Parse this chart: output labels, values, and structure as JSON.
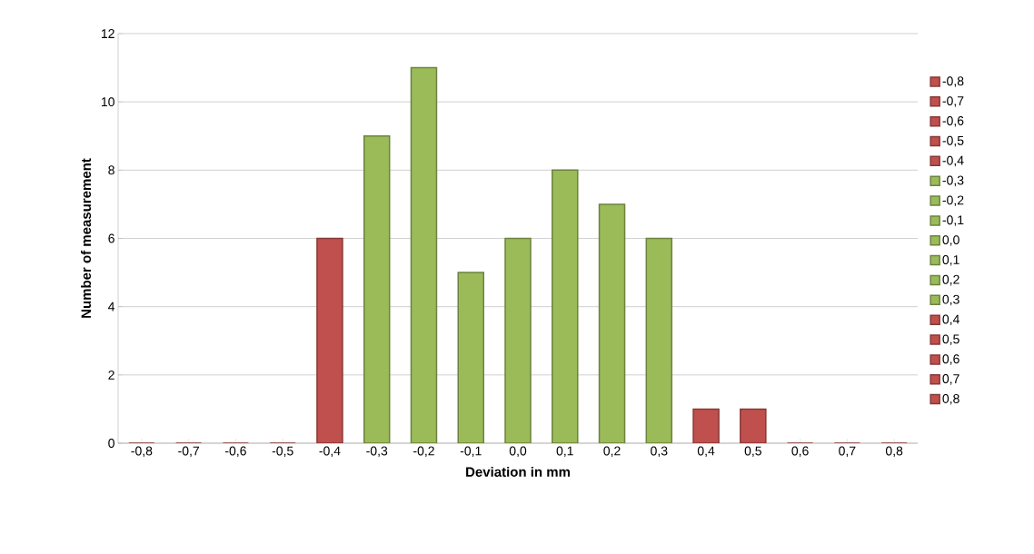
{
  "chart_data": {
    "type": "bar",
    "xlabel": "Deviation in mm",
    "ylabel": "Number of measurement",
    "categories": [
      "-0,8",
      "-0,7",
      "-0,6",
      "-0,5",
      "-0,4",
      "-0,3",
      "-0,2",
      "-0,1",
      "0,0",
      "0,1",
      "0,2",
      "0,3",
      "0,4",
      "0,5",
      "0,6",
      "0,7",
      "0,8"
    ],
    "series": [
      {
        "name": "-0,8",
        "color": "#c0504d",
        "values": [
          0,
          null,
          null,
          null,
          null,
          null,
          null,
          null,
          null,
          null,
          null,
          null,
          null,
          null,
          null,
          null,
          null
        ]
      },
      {
        "name": "-0,7",
        "color": "#c0504d",
        "values": [
          null,
          0,
          null,
          null,
          null,
          null,
          null,
          null,
          null,
          null,
          null,
          null,
          null,
          null,
          null,
          null,
          null
        ]
      },
      {
        "name": "-0,6",
        "color": "#c0504d",
        "values": [
          null,
          null,
          0,
          null,
          null,
          null,
          null,
          null,
          null,
          null,
          null,
          null,
          null,
          null,
          null,
          null,
          null
        ]
      },
      {
        "name": "-0,5",
        "color": "#c0504d",
        "values": [
          null,
          null,
          null,
          0,
          null,
          null,
          null,
          null,
          null,
          null,
          null,
          null,
          null,
          null,
          null,
          null,
          null
        ]
      },
      {
        "name": "-0,4",
        "color": "#c0504d",
        "values": [
          null,
          null,
          null,
          null,
          6,
          null,
          null,
          null,
          null,
          null,
          null,
          null,
          null,
          null,
          null,
          null,
          null
        ]
      },
      {
        "name": "-0,3",
        "color": "#9bbb59",
        "values": [
          null,
          null,
          null,
          null,
          null,
          9,
          null,
          null,
          null,
          null,
          null,
          null,
          null,
          null,
          null,
          null,
          null
        ]
      },
      {
        "name": "-0,2",
        "color": "#9bbb59",
        "values": [
          null,
          null,
          null,
          null,
          null,
          null,
          11,
          null,
          null,
          null,
          null,
          null,
          null,
          null,
          null,
          null,
          null
        ]
      },
      {
        "name": "-0,1",
        "color": "#9bbb59",
        "values": [
          null,
          null,
          null,
          null,
          null,
          null,
          null,
          5,
          null,
          null,
          null,
          null,
          null,
          null,
          null,
          null,
          null
        ]
      },
      {
        "name": "0,0",
        "color": "#9bbb59",
        "values": [
          null,
          null,
          null,
          null,
          null,
          null,
          null,
          null,
          6,
          null,
          null,
          null,
          null,
          null,
          null,
          null,
          null
        ]
      },
      {
        "name": "0,1",
        "color": "#9bbb59",
        "values": [
          null,
          null,
          null,
          null,
          null,
          null,
          null,
          null,
          null,
          8,
          null,
          null,
          null,
          null,
          null,
          null,
          null
        ]
      },
      {
        "name": "0,2",
        "color": "#9bbb59",
        "values": [
          null,
          null,
          null,
          null,
          null,
          null,
          null,
          null,
          null,
          null,
          7,
          null,
          null,
          null,
          null,
          null,
          null
        ]
      },
      {
        "name": "0,3",
        "color": "#9bbb59",
        "values": [
          null,
          null,
          null,
          null,
          null,
          null,
          null,
          null,
          null,
          null,
          null,
          6,
          null,
          null,
          null,
          null,
          null
        ]
      },
      {
        "name": "0,4",
        "color": "#c0504d",
        "values": [
          null,
          null,
          null,
          null,
          null,
          null,
          null,
          null,
          null,
          null,
          null,
          null,
          1,
          null,
          null,
          null,
          null
        ]
      },
      {
        "name": "0,5",
        "color": "#c0504d",
        "values": [
          null,
          null,
          null,
          null,
          null,
          null,
          null,
          null,
          null,
          null,
          null,
          null,
          null,
          1,
          null,
          null,
          null
        ]
      },
      {
        "name": "0,6",
        "color": "#c0504d",
        "values": [
          null,
          null,
          null,
          null,
          null,
          null,
          null,
          null,
          null,
          null,
          null,
          null,
          null,
          null,
          0,
          null,
          null
        ]
      },
      {
        "name": "0,7",
        "color": "#c0504d",
        "values": [
          null,
          null,
          null,
          null,
          null,
          null,
          null,
          null,
          null,
          null,
          null,
          null,
          null,
          null,
          null,
          0,
          null
        ]
      },
      {
        "name": "0,8",
        "color": "#c0504d",
        "values": [
          null,
          null,
          null,
          null,
          null,
          null,
          null,
          null,
          null,
          null,
          null,
          null,
          null,
          null,
          null,
          null,
          0
        ]
      }
    ],
    "ylim": [
      0,
      12
    ],
    "yticks": [
      0,
      2,
      4,
      6,
      8,
      10,
      12
    ],
    "grid": "y",
    "legend": "right"
  }
}
